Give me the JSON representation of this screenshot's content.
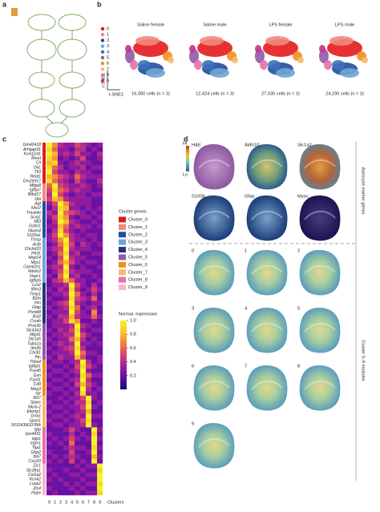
{
  "panel_labels": [
    "a",
    "b",
    "c",
    "d"
  ],
  "tsne": {
    "cluster_labels": [
      "0",
      "1",
      "2",
      "3",
      "4",
      "5",
      "6",
      "7",
      "8",
      "9"
    ],
    "colors": [
      "#e31a1c",
      "#f08a7a",
      "#1f4e9c",
      "#6fa6d6",
      "#3a72b8",
      "#8e5ba6",
      "#f28e1c",
      "#f7b96b",
      "#e76fa8",
      "#c4338f"
    ],
    "titles": [
      "Saline female",
      "Saline male",
      "LPS female",
      "LPS male"
    ],
    "counts": [
      "16,300 cells (n = 3)",
      "12,424 cells (n = 3)",
      "27,030 cells (n = 3)",
      "24,190 cells (n = 3)"
    ],
    "xlabel": "t-SNE1",
    "ylabel": "t-SNE2"
  },
  "chart_data": {
    "type": "heatmap",
    "genes": [
      "Gm42418",
      "Arhgap31",
      "Kcnq1ot1",
      "Rmst",
      "Cit",
      "Gli1",
      "Ttl3",
      "Neat1",
      "Gm26917",
      "Mfge8",
      "Igfbp7",
      "Btbd17",
      "Dbi",
      "Agt",
      "Ntsr2",
      "Tmsb4x",
      "Scrg1",
      "Mt3",
      "Gstm1",
      "Nkain4",
      "S100a1",
      "Thrsp",
      "Actb",
      "Chchd10",
      "Hint1",
      "Mrpl14",
      "Mpc1",
      "Camk2n1",
      "Ndufc2",
      "Nupr1",
      "Igfbp5",
      "Lcn2",
      "Ifitm3",
      "Timp1",
      "B2m",
      "Vim",
      "Gfap",
      "Psmb8",
      "Bst2",
      "Cryab",
      "Prss56",
      "Slc43a3",
      "Mgst1",
      "Slc1a5",
      "Tuba1a",
      "Itm2b",
      "Chi3l1",
      "Ptn",
      "Thbs4",
      "Igfbpl1",
      "Fxyd6",
      "Gsn",
      "Fxyd1",
      "Cd9",
      "Meg3",
      "Islr",
      "Ifi27",
      "Sparc",
      "Nkx6-2",
      "Efemp1",
      "Gria1",
      "Spon1",
      "5031439G07Rik",
      "Igtp",
      "Gm4951",
      "Iigp1",
      "Irgm1",
      "Tap1",
      "Gbp2",
      "Ifi47",
      "Cxcl10",
      "Zic1",
      "Slc38a1",
      "Col1a2",
      "Kcnk2",
      "Luzp2",
      "Zic4",
      "Hopx"
    ],
    "gene_clusters": [
      0,
      0,
      0,
      0,
      0,
      0,
      0,
      0,
      0,
      1,
      1,
      1,
      1,
      2,
      2,
      2,
      2,
      2,
      2,
      2,
      2,
      3,
      3,
      3,
      3,
      3,
      3,
      3,
      3,
      3,
      3,
      4,
      4,
      4,
      4,
      4,
      4,
      4,
      4,
      4,
      5,
      5,
      5,
      5,
      5,
      5,
      5,
      5,
      6,
      6,
      6,
      6,
      6,
      6,
      6,
      6,
      7,
      7,
      7,
      7,
      7,
      7,
      7,
      8,
      8,
      8,
      8,
      8,
      8,
      8,
      8,
      9,
      9,
      9,
      9,
      9,
      9,
      9
    ],
    "categories": [
      "0",
      "1",
      "2",
      "3",
      "4",
      "5",
      "6",
      "7",
      "8",
      "9"
    ],
    "xlabel": "Clusters",
    "values": [
      [
        1.0,
        0.7,
        0.4,
        0.3,
        0.3,
        0.5,
        0.4,
        0.3,
        0.2,
        0.3
      ],
      [
        0.9,
        0.6,
        0.3,
        0.3,
        0.2,
        0.4,
        0.4,
        0.2,
        0.3,
        0.2
      ],
      [
        1.0,
        0.8,
        0.3,
        0.4,
        0.3,
        0.5,
        0.3,
        0.3,
        0.2,
        0.4
      ],
      [
        0.9,
        0.7,
        0.2,
        0.3,
        0.2,
        0.3,
        0.5,
        0.2,
        0.2,
        0.3
      ],
      [
        0.8,
        0.9,
        0.3,
        0.2,
        0.3,
        0.4,
        0.3,
        0.3,
        0.2,
        0.2
      ],
      [
        0.9,
        0.6,
        0.4,
        0.2,
        0.3,
        0.3,
        0.4,
        0.2,
        0.3,
        0.3
      ],
      [
        1.0,
        0.5,
        0.3,
        0.3,
        0.2,
        0.4,
        0.3,
        0.3,
        0.2,
        0.2
      ],
      [
        0.8,
        0.7,
        0.5,
        0.4,
        0.3,
        0.6,
        0.4,
        0.3,
        0.3,
        0.3
      ],
      [
        0.9,
        0.6,
        0.4,
        0.3,
        0.2,
        0.5,
        0.3,
        0.2,
        0.2,
        0.4
      ],
      [
        0.6,
        1.0,
        0.5,
        0.4,
        0.3,
        0.3,
        0.4,
        0.3,
        0.2,
        0.3
      ],
      [
        0.5,
        0.9,
        0.6,
        0.5,
        0.3,
        0.4,
        0.3,
        0.3,
        0.2,
        0.2
      ],
      [
        0.4,
        1.0,
        0.5,
        0.3,
        0.2,
        0.3,
        0.3,
        0.2,
        0.3,
        0.3
      ],
      [
        0.5,
        0.8,
        0.7,
        0.4,
        0.3,
        0.3,
        0.3,
        0.3,
        0.2,
        0.2
      ],
      [
        0.3,
        0.5,
        1.0,
        0.7,
        0.4,
        0.3,
        0.3,
        0.3,
        0.2,
        0.2
      ],
      [
        0.2,
        0.4,
        0.9,
        0.8,
        0.3,
        0.3,
        0.2,
        0.3,
        0.2,
        0.3
      ],
      [
        0.4,
        0.3,
        1.0,
        0.6,
        0.5,
        0.4,
        0.3,
        0.2,
        0.3,
        0.2
      ],
      [
        0.3,
        0.5,
        0.9,
        0.7,
        0.3,
        0.2,
        0.3,
        0.3,
        0.2,
        0.3
      ],
      [
        0.2,
        0.4,
        1.0,
        0.8,
        0.4,
        0.3,
        0.2,
        0.2,
        0.3,
        0.2
      ],
      [
        0.3,
        0.3,
        0.8,
        0.6,
        0.3,
        0.4,
        0.3,
        0.3,
        0.2,
        0.3
      ],
      [
        0.2,
        0.4,
        0.9,
        0.5,
        0.3,
        0.2,
        0.3,
        0.2,
        0.2,
        0.2
      ],
      [
        0.3,
        0.5,
        1.0,
        0.7,
        0.4,
        0.3,
        0.2,
        0.3,
        0.3,
        0.2
      ],
      [
        0.3,
        0.4,
        0.7,
        1.0,
        0.4,
        0.3,
        0.3,
        0.2,
        0.3,
        0.2
      ],
      [
        0.2,
        0.3,
        0.6,
        0.9,
        0.5,
        0.2,
        0.4,
        0.3,
        0.2,
        0.3
      ],
      [
        0.3,
        0.4,
        0.5,
        1.0,
        0.4,
        0.3,
        0.3,
        0.3,
        0.2,
        0.2
      ],
      [
        0.2,
        0.3,
        0.6,
        0.9,
        0.3,
        0.4,
        0.2,
        0.2,
        0.3,
        0.3
      ],
      [
        0.3,
        0.2,
        0.5,
        1.0,
        0.4,
        0.3,
        0.3,
        0.2,
        0.2,
        0.2
      ],
      [
        0.2,
        0.3,
        0.6,
        0.8,
        0.5,
        0.3,
        0.2,
        0.3,
        0.3,
        0.2
      ],
      [
        0.3,
        0.4,
        0.4,
        1.0,
        0.3,
        0.2,
        0.3,
        0.2,
        0.2,
        0.3
      ],
      [
        0.2,
        0.3,
        0.5,
        0.9,
        0.4,
        0.3,
        0.3,
        0.3,
        0.2,
        0.2
      ],
      [
        0.3,
        0.2,
        0.6,
        1.0,
        0.3,
        0.4,
        0.2,
        0.2,
        0.3,
        0.2
      ],
      [
        0.2,
        0.4,
        0.5,
        0.8,
        0.6,
        0.3,
        0.3,
        0.2,
        0.2,
        0.3
      ],
      [
        0.2,
        0.3,
        0.3,
        0.4,
        1.0,
        0.5,
        0.3,
        0.2,
        0.4,
        0.2
      ],
      [
        0.3,
        0.2,
        0.4,
        0.3,
        0.9,
        0.4,
        0.2,
        0.3,
        0.5,
        0.3
      ],
      [
        0.2,
        0.3,
        0.3,
        0.4,
        1.0,
        0.6,
        0.3,
        0.2,
        0.4,
        0.2
      ],
      [
        0.3,
        0.2,
        0.2,
        0.3,
        0.9,
        0.5,
        0.4,
        0.3,
        0.6,
        0.2
      ],
      [
        0.2,
        0.3,
        0.4,
        0.5,
        1.0,
        0.4,
        0.3,
        0.2,
        0.3,
        0.3
      ],
      [
        0.3,
        0.2,
        0.3,
        0.4,
        0.9,
        0.6,
        0.2,
        0.3,
        0.4,
        0.2
      ],
      [
        0.2,
        0.3,
        0.3,
        0.3,
        1.0,
        0.5,
        0.3,
        0.2,
        0.7,
        0.2
      ],
      [
        0.3,
        0.2,
        0.4,
        0.4,
        0.8,
        0.4,
        0.3,
        0.3,
        0.6,
        0.3
      ],
      [
        0.2,
        0.3,
        0.3,
        0.5,
        0.9,
        0.7,
        0.2,
        0.2,
        0.3,
        0.2
      ],
      [
        0.2,
        0.3,
        0.3,
        0.3,
        0.4,
        1.0,
        0.4,
        0.3,
        0.2,
        0.2
      ],
      [
        0.3,
        0.2,
        0.4,
        0.3,
        0.5,
        0.9,
        0.3,
        0.2,
        0.3,
        0.3
      ],
      [
        0.2,
        0.3,
        0.3,
        0.4,
        0.4,
        1.0,
        0.5,
        0.3,
        0.2,
        0.2
      ],
      [
        0.3,
        0.2,
        0.3,
        0.3,
        0.6,
        0.8,
        0.4,
        0.2,
        0.3,
        0.2
      ],
      [
        0.2,
        0.3,
        0.4,
        0.3,
        0.4,
        1.0,
        0.3,
        0.3,
        0.2,
        0.3
      ],
      [
        0.3,
        0.2,
        0.3,
        0.4,
        0.5,
        0.9,
        0.4,
        0.2,
        0.2,
        0.2
      ],
      [
        0.2,
        0.3,
        0.3,
        0.3,
        0.4,
        1.0,
        0.6,
        0.3,
        0.3,
        0.2
      ],
      [
        0.3,
        0.2,
        0.4,
        0.3,
        0.3,
        0.8,
        0.5,
        0.2,
        0.2,
        0.3
      ],
      [
        0.2,
        0.3,
        0.3,
        0.2,
        0.3,
        0.4,
        1.0,
        0.4,
        0.2,
        0.3
      ],
      [
        0.3,
        0.2,
        0.2,
        0.3,
        0.2,
        0.5,
        0.9,
        0.5,
        0.3,
        0.2
      ],
      [
        0.2,
        0.3,
        0.3,
        0.2,
        0.3,
        0.4,
        1.0,
        0.3,
        0.2,
        0.2
      ],
      [
        0.3,
        0.2,
        0.2,
        0.3,
        0.2,
        0.3,
        0.9,
        0.6,
        0.3,
        0.3
      ],
      [
        0.2,
        0.3,
        0.3,
        0.2,
        0.3,
        0.4,
        1.0,
        0.4,
        0.2,
        0.2
      ],
      [
        0.3,
        0.2,
        0.2,
        0.3,
        0.2,
        0.5,
        0.8,
        0.5,
        0.3,
        0.2
      ],
      [
        0.2,
        0.3,
        0.3,
        0.2,
        0.3,
        0.3,
        1.0,
        0.4,
        0.2,
        0.3
      ],
      [
        0.3,
        0.2,
        0.2,
        0.3,
        0.2,
        0.4,
        0.9,
        0.3,
        0.3,
        0.2
      ],
      [
        0.2,
        0.2,
        0.3,
        0.2,
        0.3,
        0.3,
        0.5,
        1.0,
        0.3,
        0.2
      ],
      [
        0.3,
        0.2,
        0.2,
        0.3,
        0.2,
        0.4,
        0.4,
        0.9,
        0.2,
        0.3
      ],
      [
        0.2,
        0.3,
        0.3,
        0.2,
        0.3,
        0.3,
        0.5,
        1.0,
        0.3,
        0.2
      ],
      [
        0.3,
        0.2,
        0.2,
        0.3,
        0.2,
        0.3,
        0.4,
        0.8,
        0.2,
        0.2
      ],
      [
        0.2,
        0.3,
        0.3,
        0.2,
        0.3,
        0.4,
        0.3,
        1.0,
        0.3,
        0.3
      ],
      [
        0.3,
        0.2,
        0.2,
        0.3,
        0.2,
        0.3,
        0.5,
        0.9,
        0.2,
        0.2
      ],
      [
        0.2,
        0.3,
        0.3,
        0.2,
        0.3,
        0.3,
        0.4,
        1.0,
        0.3,
        0.2
      ],
      [
        0.2,
        0.2,
        0.2,
        0.3,
        0.5,
        0.3,
        0.2,
        0.2,
        1.0,
        0.3
      ],
      [
        0.3,
        0.2,
        0.2,
        0.2,
        0.4,
        0.2,
        0.3,
        0.2,
        0.9,
        0.2
      ],
      [
        0.2,
        0.3,
        0.2,
        0.3,
        0.5,
        0.3,
        0.2,
        0.3,
        1.0,
        0.3
      ],
      [
        0.3,
        0.2,
        0.3,
        0.2,
        0.6,
        0.2,
        0.2,
        0.2,
        1.0,
        0.2
      ],
      [
        0.2,
        0.2,
        0.2,
        0.3,
        0.4,
        0.3,
        0.3,
        0.2,
        0.9,
        0.3
      ],
      [
        0.3,
        0.2,
        0.2,
        0.2,
        0.5,
        0.2,
        0.2,
        0.3,
        1.0,
        0.2
      ],
      [
        0.2,
        0.3,
        0.2,
        0.3,
        0.4,
        0.3,
        0.2,
        0.2,
        0.8,
        0.3
      ],
      [
        0.3,
        0.2,
        0.3,
        0.2,
        0.5,
        0.2,
        0.3,
        0.2,
        1.0,
        0.2
      ],
      [
        0.2,
        0.2,
        0.2,
        0.2,
        0.2,
        0.3,
        0.2,
        0.3,
        0.3,
        1.0
      ],
      [
        0.3,
        0.2,
        0.2,
        0.3,
        0.2,
        0.2,
        0.3,
        0.2,
        0.2,
        0.9
      ],
      [
        0.2,
        0.3,
        0.2,
        0.2,
        0.3,
        0.3,
        0.2,
        0.3,
        0.3,
        1.0
      ],
      [
        0.3,
        0.2,
        0.3,
        0.2,
        0.2,
        0.2,
        0.3,
        0.2,
        0.2,
        1.0
      ],
      [
        0.2,
        0.2,
        0.2,
        0.3,
        0.2,
        0.3,
        0.2,
        0.3,
        0.3,
        0.9
      ],
      [
        0.3,
        0.2,
        0.2,
        0.2,
        0.3,
        0.2,
        0.3,
        0.2,
        0.2,
        1.0
      ],
      [
        0.2,
        0.3,
        0.2,
        0.2,
        0.2,
        0.3,
        0.2,
        0.3,
        0.3,
        0.9
      ]
    ],
    "colormap": [
      "#1a0a6e",
      "#5b0da6",
      "#a11f9c",
      "#d4456e",
      "#f3813f",
      "#fcc32c",
      "#f2f527"
    ],
    "clim": [
      0,
      1
    ],
    "colorbar_title": "Normal. expression",
    "colorbar_ticks": [
      0.2,
      0.4,
      0.6,
      {
        "value": 1,
        "label": "1.0"
      },
      0.8
    ],
    "legend_title": "Cluster genes",
    "legend": [
      {
        "name": "Cluster_0",
        "color": "#e31a1c"
      },
      {
        "name": "Cluster_1",
        "color": "#f08a7a"
      },
      {
        "name": "Cluster_2",
        "color": "#1f4e9c"
      },
      {
        "name": "Cluster_3",
        "color": "#6fa6d6"
      },
      {
        "name": "Cluster_4",
        "color": "#24357a"
      },
      {
        "name": "Cluster_5",
        "color": "#8e5ba6"
      },
      {
        "name": "Cluster_6",
        "color": "#f28e1c"
      },
      {
        "name": "Cluster_7",
        "color": "#f7b96b"
      },
      {
        "name": "Cluster_8",
        "color": "#e76fa8"
      },
      {
        "name": "Cluster_9",
        "color": "#f3b7d3"
      }
    ]
  },
  "spatial": {
    "scale_hi": "Hi",
    "scale_lo": "Lo",
    "markers": [
      "H&E",
      "Aldh1l1",
      "Slc1a2",
      "S100b",
      "Gfap",
      "Myoc"
    ],
    "modules": [
      "0",
      "1",
      "2",
      "3",
      "4",
      "5",
      "6",
      "7",
      "8",
      "9"
    ],
    "marker_section": "Astrocyte marker genes",
    "module_section": "Cluster 0–9 modules"
  }
}
